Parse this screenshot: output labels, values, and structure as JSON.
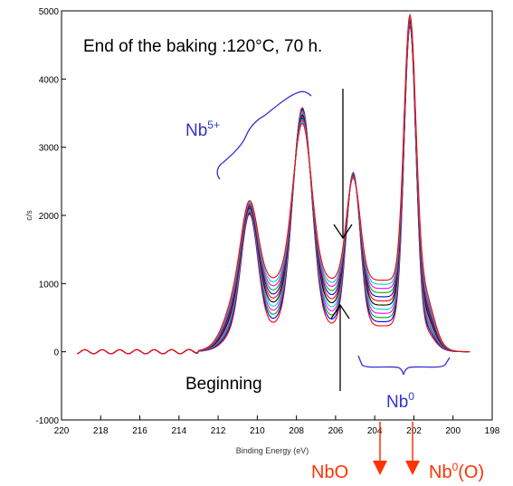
{
  "chart_data": {
    "type": "line",
    "title": "",
    "xlabel": "Binding Energy (eV)",
    "ylabel": "c/s",
    "xlim": [
      220,
      198
    ],
    "x_reversed": true,
    "ylim": [
      -1000,
      5000
    ],
    "x_ticks": [
      "220",
      "218",
      "216",
      "214",
      "212",
      "210",
      "208",
      "206",
      "204",
      "202",
      "200",
      "198"
    ],
    "y_ticks": [
      "-1000",
      "0",
      "1000",
      "2000",
      "3000",
      "4000",
      "5000"
    ],
    "grid": false,
    "legend": "none",
    "series_count": 12,
    "series_colors": [
      "#ff0000",
      "#0000ff",
      "#00aa00",
      "#ff00ff",
      "#00cccc",
      "#000000",
      "#ff0000",
      "#0000ff",
      "#00aa00",
      "#ff00ff",
      "#00cccc",
      "#ff0000"
    ],
    "peaks_first": [
      {
        "x": 219,
        "y": 20
      },
      {
        "x": 214,
        "y": 0
      },
      {
        "x": 212,
        "y": 50
      },
      {
        "x": 210.4,
        "y": 2200
      },
      {
        "x": 209,
        "y": 400
      },
      {
        "x": 207.7,
        "y": 3600
      },
      {
        "x": 206,
        "y": 700
      },
      {
        "x": 205.1,
        "y": 3050
      },
      {
        "x": 203.8,
        "y": 500
      },
      {
        "x": 202.2,
        "y": 4550
      },
      {
        "x": 201,
        "y": 0
      },
      {
        "x": 199.3,
        "y": 0
      }
    ],
    "peaks_last": [
      {
        "x": 219,
        "y": 0
      },
      {
        "x": 214,
        "y": -30
      },
      {
        "x": 212,
        "y": 30
      },
      {
        "x": 210.4,
        "y": 1950
      },
      {
        "x": 209,
        "y": 1000
      },
      {
        "x": 207.7,
        "y": 3250
      },
      {
        "x": 206,
        "y": 1700
      },
      {
        "x": 205.1,
        "y": 2600
      },
      {
        "x": 203.8,
        "y": 420
      },
      {
        "x": 202.2,
        "y": 4200
      },
      {
        "x": 201,
        "y": 0
      },
      {
        "x": 199.3,
        "y": 0
      }
    ],
    "annotations": {
      "end_label": "End of the baking :120°C, 70 h.",
      "beginning_label": "Beginning",
      "nb5_base": "Nb",
      "nb5_sup": "5+",
      "nb0_base": "Nb",
      "nb0_sup": "0",
      "nbo_label": "NbO",
      "nb0o_base": "Nb",
      "nb0o_sup": "0",
      "nb0o_suffix": "(O)"
    },
    "colors": {
      "annotation_black": "#000000",
      "annotation_blue": "#3333cc",
      "annotation_red": "#ff3300"
    }
  }
}
